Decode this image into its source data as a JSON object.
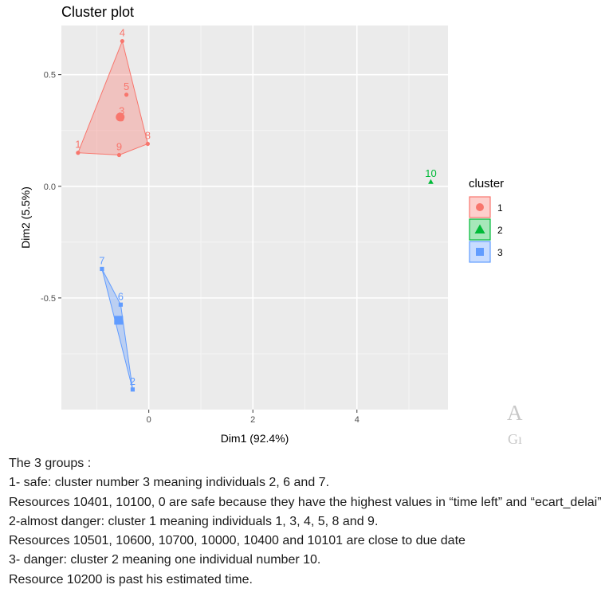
{
  "chart_data": {
    "type": "scatter",
    "title": "Cluster plot",
    "xlabel": "Dim1 (92.4%)",
    "ylabel": "Dim2 (5.5%)",
    "xlim": [
      -1.68,
      5.75
    ],
    "ylim": [
      -1.0,
      0.72
    ],
    "x_ticks": [
      0,
      2,
      4
    ],
    "y_ticks": [
      0.5,
      0.0,
      -0.5
    ],
    "x_tick_labels": [
      "0",
      "2",
      "4"
    ],
    "y_tick_labels": [
      "0.5",
      "0.0",
      "-0.5"
    ],
    "grid": true,
    "legend": {
      "title": "cluster",
      "placement": "right",
      "entries": [
        "1",
        "2",
        "3"
      ]
    },
    "colors": {
      "1": "#F8766D",
      "2": "#00BA38",
      "3": "#619CFF"
    },
    "points": [
      {
        "label": "1",
        "x": -1.36,
        "y": 0.15,
        "cluster": "1"
      },
      {
        "label": "4",
        "x": -0.51,
        "y": 0.65,
        "cluster": "1"
      },
      {
        "label": "5",
        "x": -0.43,
        "y": 0.41,
        "cluster": "1"
      },
      {
        "label": "3",
        "x": -0.52,
        "y": 0.3,
        "cluster": "1"
      },
      {
        "label": "8",
        "x": -0.02,
        "y": 0.19,
        "cluster": "1"
      },
      {
        "label": "9",
        "x": -0.57,
        "y": 0.14,
        "cluster": "1"
      },
      {
        "label": "10",
        "x": 5.42,
        "y": 0.02,
        "cluster": "2"
      },
      {
        "label": "7",
        "x": -0.9,
        "y": -0.37,
        "cluster": "3"
      },
      {
        "label": "6",
        "x": -0.54,
        "y": -0.53,
        "cluster": "3"
      },
      {
        "label": "2",
        "x": -0.31,
        "y": -0.91,
        "cluster": "3"
      }
    ],
    "hulls": {
      "1": [
        "1",
        "4",
        "8",
        "9"
      ],
      "3": [
        "7",
        "6",
        "2"
      ]
    },
    "centroids": [
      {
        "cluster": "1",
        "x": -0.55,
        "y": 0.31
      },
      {
        "cluster": "3",
        "x": -0.58,
        "y": -0.6
      }
    ]
  },
  "watermark": {
    "top": "A",
    "bottom": "Gı"
  },
  "description": {
    "lines": [
      "The 3 groups :",
      "1- safe: cluster number 3 meaning individuals 2, 6 and 7.",
      "Resources 10401, 10100, 0 are safe because they have the highest values in “time left” and “ecart_delai”",
      "2-almost danger: cluster 1 meaning individuals 1, 3, 4, 5, 8 and 9.",
      "Resources 10501, 10600, 10700, 10000, 10400 and 10101 are close to due date",
      "3- danger: cluster 2 meaning one individual number 10.",
      "Resource 10200 is past his estimated time."
    ]
  }
}
